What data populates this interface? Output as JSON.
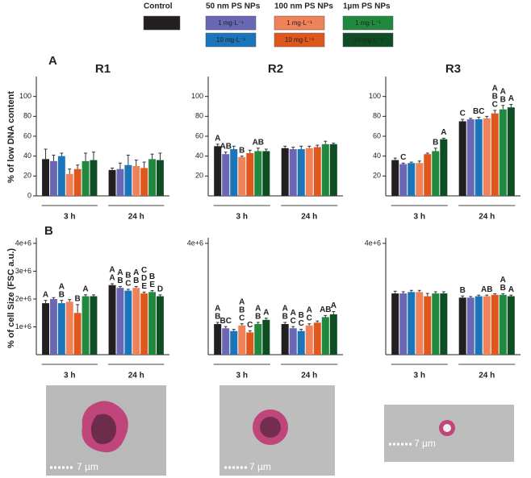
{
  "legend": {
    "groups": [
      {
        "name": "Control",
        "items": [
          {
            "color": "#231f20"
          }
        ]
      },
      {
        "name": "50 nm PS NPs",
        "items": [
          {
            "label": "1 mg·L⁻¹",
            "color": "#6a67b4"
          },
          {
            "label": "10 mg·L⁻¹",
            "color": "#1b75bb"
          }
        ]
      },
      {
        "name": "100 nm PS NPs",
        "items": [
          {
            "label": "1 mg·L⁻¹",
            "color": "#f0825a"
          },
          {
            "label": "10 mg·L⁻¹",
            "color": "#e0571e"
          }
        ]
      },
      {
        "name": "1µm PS NPs",
        "items": [
          {
            "label": "1 mg·L⁻¹",
            "color": "#20893e"
          },
          {
            "label": "10 mg·L⁻¹",
            "color": "#0f4d24"
          }
        ]
      }
    ]
  },
  "panel_labels": [
    "A",
    "B"
  ],
  "chart_data": [
    {
      "type": "bar",
      "title": "R1",
      "ylabel": "% of low DNA content",
      "categories": [
        "3 h",
        "24 h"
      ],
      "ylim": [
        0,
        120
      ],
      "yticks": [
        0,
        20,
        40,
        60,
        80,
        100
      ],
      "series": [
        {
          "color": "#231f20",
          "values": [
            37,
            26
          ],
          "errors": [
            10,
            2
          ]
        },
        {
          "color": "#6a67b4",
          "values": [
            35,
            27
          ],
          "errors": [
            6,
            6
          ]
        },
        {
          "color": "#1b75bb",
          "values": [
            40,
            31
          ],
          "errors": [
            3,
            10
          ]
        },
        {
          "color": "#f0825a",
          "values": [
            22,
            30
          ],
          "errors": [
            5,
            6
          ]
        },
        {
          "color": "#e0571e",
          "values": [
            27,
            28
          ],
          "errors": [
            4,
            6
          ]
        },
        {
          "color": "#20893e",
          "values": [
            35,
            37
          ],
          "errors": [
            8,
            5
          ]
        },
        {
          "color": "#0f4d24",
          "values": [
            36,
            36
          ],
          "errors": [
            8,
            7
          ]
        }
      ]
    },
    {
      "type": "bar",
      "title": "R2",
      "categories": [
        "3 h",
        "24 h"
      ],
      "ylim": [
        0,
        120
      ],
      "yticks": [
        20,
        40,
        60,
        80,
        100
      ],
      "series": [
        {
          "color": "#231f20",
          "values": [
            50,
            48
          ],
          "errors": [
            2,
            2
          ],
          "letters": [
            [
              "A"
            ],
            null
          ]
        },
        {
          "color": "#6a67b4",
          "values": [
            42,
            47
          ],
          "errors": [
            2,
            2
          ],
          "letters": [
            [
              "AB"
            ],
            null
          ]
        },
        {
          "color": "#1b75bb",
          "values": [
            47,
            47
          ],
          "errors": [
            3,
            3
          ]
        },
        {
          "color": "#f0825a",
          "values": [
            39,
            48
          ],
          "errors": [
            1,
            2
          ],
          "letters": [
            [
              "B"
            ],
            null
          ]
        },
        {
          "color": "#e0571e",
          "values": [
            43,
            49
          ],
          "errors": [
            3,
            2
          ]
        },
        {
          "color": "#20893e",
          "values": [
            45,
            52
          ],
          "errors": [
            3,
            3
          ],
          "letters": [
            [
              "AB"
            ],
            null
          ]
        },
        {
          "color": "#0f4d24",
          "values": [
            45,
            52
          ],
          "errors": [
            2,
            1
          ]
        }
      ]
    },
    {
      "type": "bar",
      "title": "R3",
      "categories": [
        "3 h",
        "24 h"
      ],
      "ylim": [
        0,
        120
      ],
      "yticks": [
        20,
        40,
        60,
        80,
        100
      ],
      "series": [
        {
          "color": "#231f20",
          "values": [
            36,
            75
          ],
          "errors": [
            2,
            2
          ],
          "letters": [
            null,
            [
              "C"
            ]
          ]
        },
        {
          "color": "#6a67b4",
          "values": [
            32,
            77
          ],
          "errors": [
            1,
            1
          ],
          "letters": [
            [
              "C"
            ],
            null
          ]
        },
        {
          "color": "#1b75bb",
          "values": [
            33,
            77
          ],
          "errors": [
            1,
            2
          ],
          "letters": [
            null,
            [
              "BC"
            ]
          ]
        },
        {
          "color": "#f0825a",
          "values": [
            33,
            78
          ],
          "errors": [
            2,
            2
          ]
        },
        {
          "color": "#e0571e",
          "values": [
            42,
            83
          ],
          "errors": [
            1,
            3
          ],
          "letters": [
            null,
            [
              "A",
              "B",
              "C"
            ]
          ]
        },
        {
          "color": "#20893e",
          "values": [
            45,
            87
          ],
          "errors": [
            3,
            4
          ],
          "letters": [
            [
              "B"
            ],
            [
              "A",
              "B"
            ]
          ]
        },
        {
          "color": "#0f4d24",
          "values": [
            57,
            89
          ],
          "errors": [
            1,
            3
          ],
          "letters": [
            [
              "A"
            ],
            [
              "A"
            ]
          ]
        }
      ]
    },
    {
      "type": "bar",
      "ylabel": "% of cell Size (FSC a.u.)",
      "categories": [
        "3 h",
        "24 h"
      ],
      "ylim": [
        0,
        4200000
      ],
      "yticks": [
        {
          "value": 1000000,
          "label": "1e+6"
        },
        {
          "value": 2000000,
          "label": "2e+6"
        },
        {
          "value": 3000000,
          "label": "3e+6"
        },
        {
          "value": 4000000,
          "label": "4e+6"
        }
      ],
      "series": [
        {
          "color": "#231f20",
          "values": [
            1850000,
            2500000
          ],
          "errors": [
            100000,
            50000
          ],
          "letters": [
            [
              "A"
            ],
            [
              "A",
              "A"
            ]
          ]
        },
        {
          "color": "#6a67b4",
          "values": [
            2000000,
            2400000
          ],
          "errors": [
            50000,
            50000
          ],
          "letters": [
            null,
            [
              "A",
              "B"
            ]
          ]
        },
        {
          "color": "#1b75bb",
          "values": [
            1850000,
            2300000
          ],
          "errors": [
            100000,
            50000
          ],
          "letters": [
            [
              "A",
              "B"
            ],
            [
              "B",
              "C"
            ]
          ]
        },
        {
          "color": "#f0825a",
          "values": [
            1900000,
            2400000
          ],
          "errors": [
            80000,
            50000
          ],
          "letters": [
            null,
            [
              "A",
              "B"
            ]
          ]
        },
        {
          "color": "#e0571e",
          "values": [
            1500000,
            2200000
          ],
          "errors": [
            300000,
            50000
          ],
          "letters": [
            [
              "B"
            ],
            [
              "C",
              "D",
              "E"
            ]
          ]
        },
        {
          "color": "#20893e",
          "values": [
            2100000,
            2250000
          ],
          "errors": [
            50000,
            50000
          ],
          "letters": [
            [
              "A"
            ],
            [
              "B",
              "E"
            ]
          ]
        },
        {
          "color": "#0f4d24",
          "values": [
            2100000,
            2100000
          ],
          "errors": [
            50000,
            50000
          ],
          "letters": [
            null,
            [
              "D"
            ]
          ]
        }
      ]
    },
    {
      "type": "bar",
      "categories": [
        "3 h",
        "24 h"
      ],
      "ylim": [
        0,
        4200000
      ],
      "yticks": [
        {
          "value": 4000000,
          "label": "4e+6"
        }
      ],
      "series": [
        {
          "color": "#231f20",
          "values": [
            1100000,
            1100000
          ],
          "errors": [
            60000,
            60000
          ],
          "letters": [
            [
              "A",
              "B"
            ],
            [
              "A",
              "B"
            ]
          ]
        },
        {
          "color": "#6a67b4",
          "values": [
            950000,
            950000
          ],
          "errors": [
            60000,
            60000
          ],
          "letters": [
            [
              "BC"
            ],
            [
              "A",
              "C"
            ]
          ]
        },
        {
          "color": "#1b75bb",
          "values": [
            850000,
            850000
          ],
          "errors": [
            60000,
            60000
          ],
          "letters": [
            null,
            [
              "B",
              "C"
            ]
          ]
        },
        {
          "color": "#f0825a",
          "values": [
            1050000,
            1050000
          ],
          "errors": [
            60000,
            60000
          ],
          "letters": [
            [
              "A",
              "B",
              "C"
            ],
            [
              "A",
              "C"
            ]
          ]
        },
        {
          "color": "#e0571e",
          "values": [
            800000,
            1150000
          ],
          "errors": [
            60000,
            60000
          ],
          "letters": [
            [
              "C"
            ],
            null
          ]
        },
        {
          "color": "#20893e",
          "values": [
            1100000,
            1350000
          ],
          "errors": [
            60000,
            60000
          ],
          "letters": [
            [
              "A",
              "B"
            ],
            [
              "AB"
            ]
          ]
        },
        {
          "color": "#0f4d24",
          "values": [
            1250000,
            1450000
          ],
          "errors": [
            60000,
            100000
          ],
          "letters": [
            [
              "A"
            ],
            [
              "A"
            ]
          ]
        }
      ]
    },
    {
      "type": "bar",
      "categories": [
        "3 h",
        "24 h"
      ],
      "ylim": [
        0,
        4200000
      ],
      "yticks": [
        {
          "value": 4000000,
          "label": "4e+6"
        }
      ],
      "series": [
        {
          "color": "#231f20",
          "values": [
            2200000,
            2050000
          ],
          "errors": [
            80000,
            60000
          ],
          "letters": [
            null,
            [
              "B"
            ]
          ]
        },
        {
          "color": "#6a67b4",
          "values": [
            2200000,
            2050000
          ],
          "errors": [
            60000,
            40000
          ]
        },
        {
          "color": "#1b75bb",
          "values": [
            2250000,
            2100000
          ],
          "errors": [
            60000,
            40000
          ]
        },
        {
          "color": "#f0825a",
          "values": [
            2250000,
            2100000
          ],
          "errors": [
            60000,
            40000
          ],
          "letters": [
            null,
            [
              "AB"
            ]
          ]
        },
        {
          "color": "#e0571e",
          "values": [
            2100000,
            2150000
          ],
          "errors": [
            100000,
            40000
          ]
        },
        {
          "color": "#20893e",
          "values": [
            2200000,
            2150000
          ],
          "errors": [
            60000,
            40000
          ],
          "letters": [
            null,
            [
              "A",
              "B"
            ]
          ]
        },
        {
          "color": "#0f4d24",
          "values": [
            2200000,
            2100000
          ],
          "errors": [
            60000,
            40000
          ],
          "letters": [
            null,
            [
              "A"
            ]
          ]
        }
      ]
    }
  ],
  "images": [
    {
      "scale": "7 µm"
    },
    {
      "scale": "7 µm"
    },
    {
      "scale": "7 µm"
    }
  ]
}
